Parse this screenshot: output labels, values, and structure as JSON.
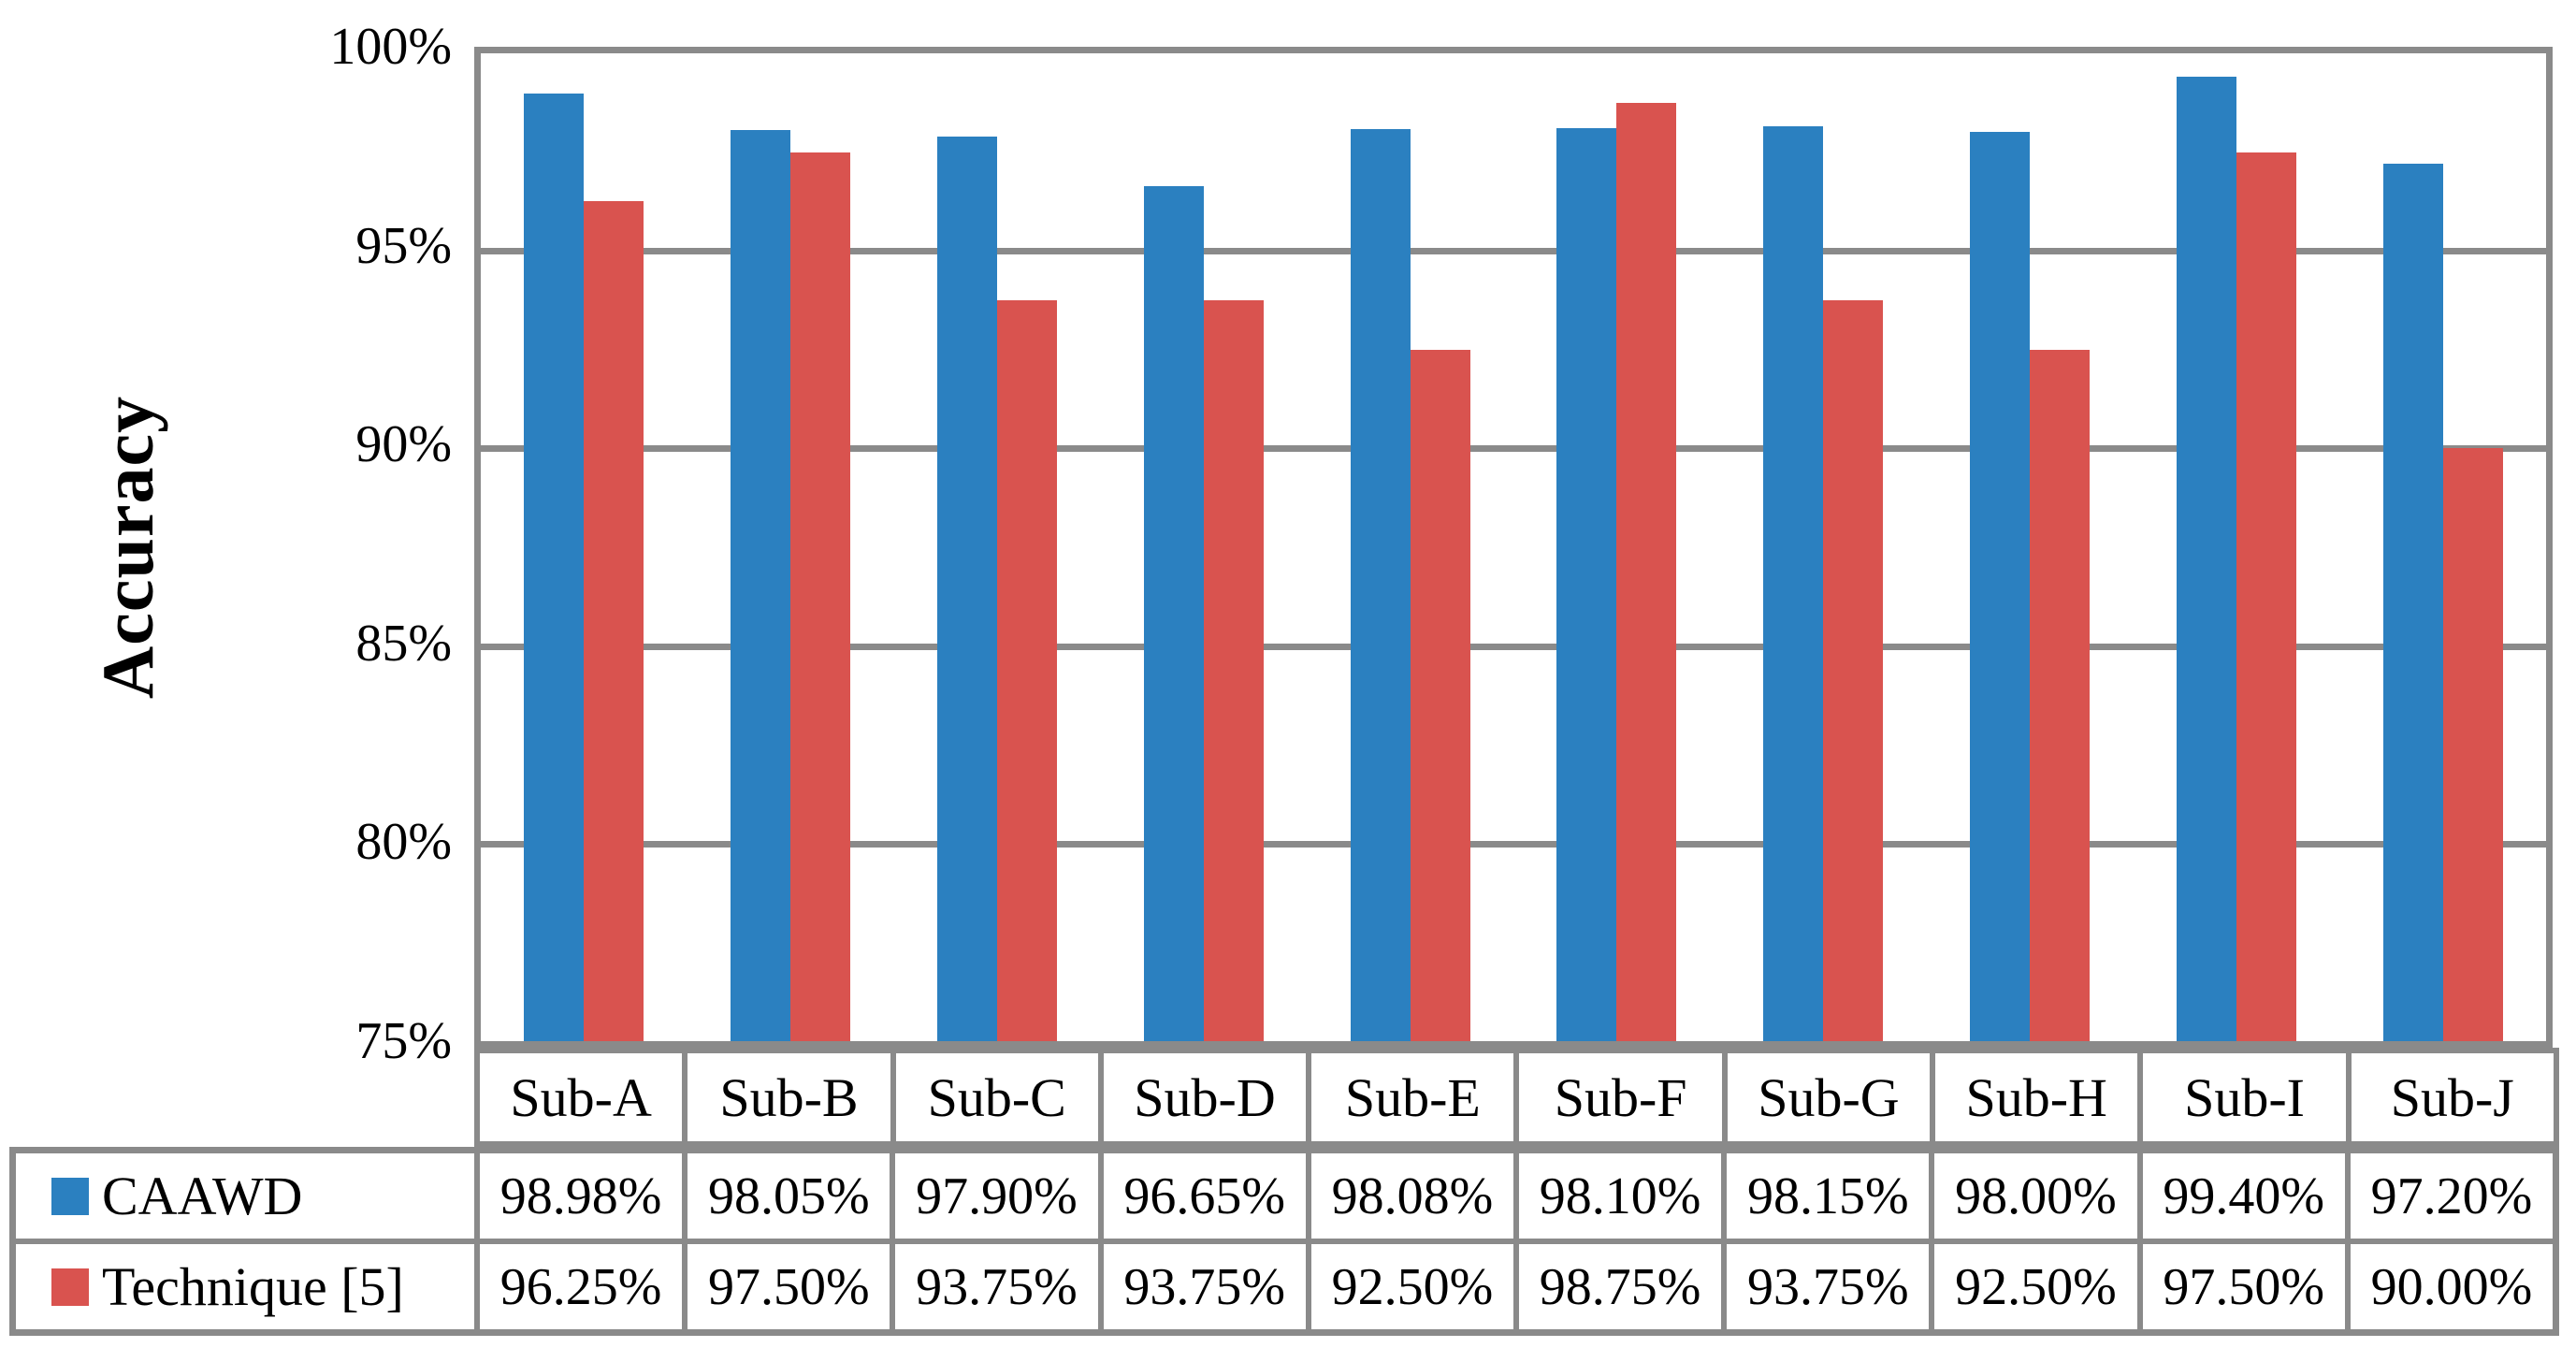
{
  "chart_data": {
    "type": "bar",
    "title": "",
    "xlabel": "",
    "ylabel": "Accuracy",
    "ylim": [
      75,
      100
    ],
    "ytick_step": 5,
    "ytick_labels_top_down": [
      "100%",
      "95%",
      "90%",
      "85%",
      "80%",
      "75%"
    ],
    "grid": "horizontal",
    "legend_position": "table-left-column",
    "categories": [
      "Sub-A",
      "Sub-B",
      "Sub-C",
      "Sub-D",
      "Sub-E",
      "Sub-F",
      "Sub-G",
      "Sub-H",
      "Sub-I",
      "Sub-J"
    ],
    "series": [
      {
        "name": "CAAWD",
        "color": "#2b80c0",
        "values": [
          98.98,
          98.05,
          97.9,
          96.65,
          98.08,
          98.1,
          98.15,
          98.0,
          99.4,
          97.2
        ],
        "display_values": [
          "98.98%",
          "98.05%",
          "97.90%",
          "96.65%",
          "98.08%",
          "98.10%",
          "98.15%",
          "98.00%",
          "99.40%",
          "97.20%"
        ]
      },
      {
        "name": "Technique [5]",
        "color": "#d9534f",
        "values": [
          96.25,
          97.5,
          93.75,
          93.75,
          92.5,
          98.75,
          93.75,
          92.5,
          97.5,
          90.0
        ],
        "display_values": [
          "96.25%",
          "97.50%",
          "93.75%",
          "93.75%",
          "92.50%",
          "98.75%",
          "93.75%",
          "92.50%",
          "97.50%",
          "90.00%"
        ]
      }
    ]
  },
  "colors": {
    "grid": "#8a8a8a",
    "series_blue": "#2b80c0",
    "series_red": "#d9534f",
    "text": "#000000",
    "background": "#ffffff"
  }
}
